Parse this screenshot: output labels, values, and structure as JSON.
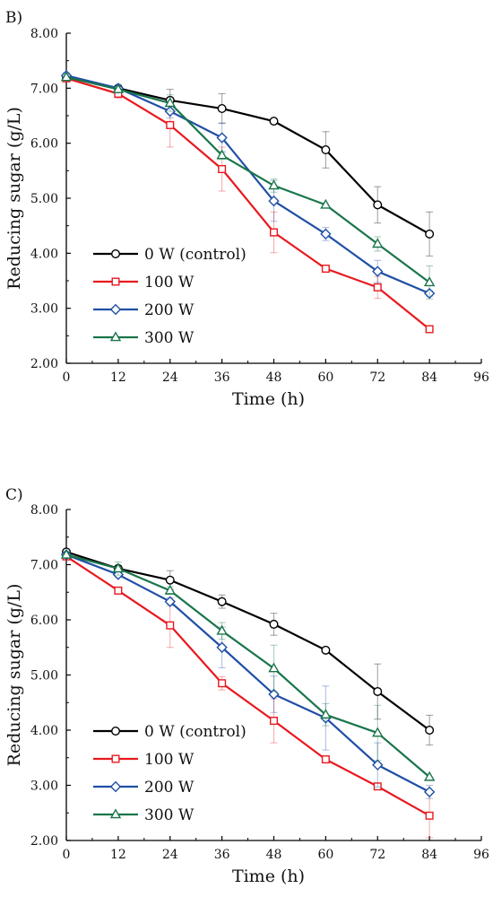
{
  "chart_data": [
    {
      "panel_label": "B)",
      "type": "line",
      "xlabel": "Time (h)",
      "ylabel": "Reducing sugar (g/L)",
      "xlim": [
        0,
        96
      ],
      "ylim": [
        2.0,
        8.0
      ],
      "xticks": [
        "0",
        "12",
        "24",
        "36",
        "48",
        "60",
        "72",
        "84",
        "96"
      ],
      "yticks": [
        "2.00",
        "3.00",
        "4.00",
        "5.00",
        "6.00",
        "7.00",
        "8.00"
      ],
      "legend_position": "bottom-left",
      "grid": false,
      "x": [
        0,
        12,
        24,
        36,
        48,
        60,
        72,
        84
      ],
      "series": [
        {
          "name": "0 W (control)",
          "color": "#000000",
          "marker": "circle",
          "values": [
            7.2,
            7.0,
            6.78,
            6.63,
            6.4,
            5.88,
            4.88,
            4.35
          ],
          "errors": [
            0.05,
            0.05,
            0.2,
            0.27,
            0.0,
            0.33,
            0.33,
            0.4
          ]
        },
        {
          "name": "100 W",
          "color": "#e8191f",
          "marker": "square",
          "values": [
            7.18,
            6.9,
            6.33,
            5.53,
            4.38,
            3.72,
            3.38,
            2.62
          ],
          "errors": [
            0.05,
            0.08,
            0.4,
            0.4,
            0.37,
            0.0,
            0.2,
            0.0
          ]
        },
        {
          "name": "200 W",
          "color": "#1f4fa5",
          "marker": "diamond",
          "values": [
            7.23,
            7.0,
            6.58,
            6.1,
            4.95,
            4.35,
            3.67,
            3.27
          ],
          "errors": [
            0.05,
            0.05,
            0.12,
            0.27,
            0.37,
            0.12,
            0.2,
            0.05
          ]
        },
        {
          "name": "300 W",
          "color": "#18754a",
          "marker": "triangle",
          "values": [
            7.2,
            6.98,
            6.73,
            5.78,
            5.23,
            4.88,
            4.17,
            3.47
          ],
          "errors": [
            0.05,
            0.05,
            0.15,
            0.07,
            0.12,
            0.0,
            0.13,
            0.3
          ]
        }
      ]
    },
    {
      "panel_label": "C)",
      "type": "line",
      "xlabel": "Time (h)",
      "ylabel": "Reducing sugar (g/L)",
      "xlim": [
        0,
        96
      ],
      "ylim": [
        2.0,
        8.0
      ],
      "xticks": [
        "0",
        "12",
        "24",
        "36",
        "48",
        "60",
        "72",
        "84",
        "96"
      ],
      "yticks": [
        "2.00",
        "3.00",
        "4.00",
        "5.00",
        "6.00",
        "7.00",
        "8.00"
      ],
      "legend_position": "bottom-left",
      "grid": false,
      "x": [
        0,
        12,
        24,
        36,
        48,
        60,
        72,
        84
      ],
      "series": [
        {
          "name": "0 W (control)",
          "color": "#000000",
          "marker": "circle",
          "values": [
            7.23,
            6.93,
            6.72,
            6.33,
            5.92,
            5.45,
            4.7,
            4.0
          ],
          "errors": [
            0.05,
            0.05,
            0.17,
            0.12,
            0.2,
            0.0,
            0.5,
            0.27
          ]
        },
        {
          "name": "100 W",
          "color": "#e8191f",
          "marker": "square",
          "values": [
            7.15,
            6.53,
            5.9,
            4.85,
            4.17,
            3.47,
            2.98,
            2.45
          ],
          "errors": [
            0.05,
            0.05,
            0.4,
            0.12,
            0.4,
            0.0,
            0.0,
            0.4
          ]
        },
        {
          "name": "200 W",
          "color": "#1f4fa5",
          "marker": "diamond",
          "values": [
            7.18,
            6.82,
            6.33,
            5.5,
            4.65,
            4.22,
            3.37,
            2.88
          ],
          "errors": [
            0.05,
            0.05,
            0.07,
            0.37,
            0.33,
            0.58,
            0.4,
            0.12
          ]
        },
        {
          "name": "300 W",
          "color": "#18754a",
          "marker": "triangle",
          "values": [
            7.18,
            6.93,
            6.53,
            5.8,
            5.12,
            4.28,
            3.95,
            3.15
          ],
          "errors": [
            0.05,
            0.12,
            0.07,
            0.15,
            0.42,
            0.2,
            0.5,
            0.0
          ]
        }
      ]
    }
  ]
}
